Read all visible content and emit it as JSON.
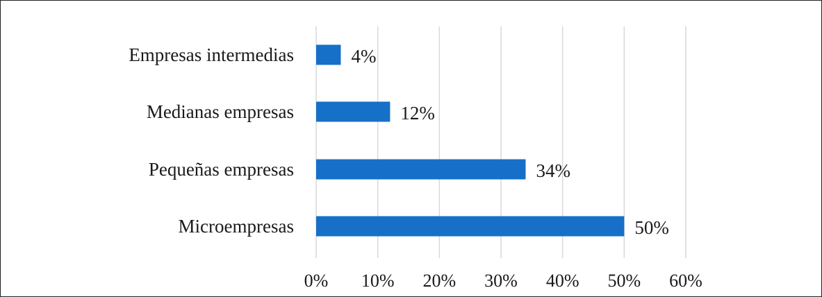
{
  "chart_data": {
    "type": "bar",
    "orientation": "horizontal",
    "title": "",
    "xlabel": "",
    "ylabel": "",
    "categories": [
      "Empresas intermedias",
      "Medianas empresas",
      "Pequeñas empresas",
      "Microempresas"
    ],
    "values": [
      4,
      12,
      34,
      50
    ],
    "data_labels": [
      "4%",
      "12%",
      "34%",
      "50%"
    ],
    "xlim": [
      0,
      60
    ],
    "x_ticks": [
      0,
      10,
      20,
      30,
      40,
      50,
      60
    ],
    "x_tick_labels": [
      "0%",
      "10%",
      "20%",
      "30%",
      "40%",
      "50%",
      "60%"
    ],
    "bar_color": "#1670c8",
    "grid": "vertical",
    "grid_color": "#d9d9d9",
    "legend": "none"
  }
}
